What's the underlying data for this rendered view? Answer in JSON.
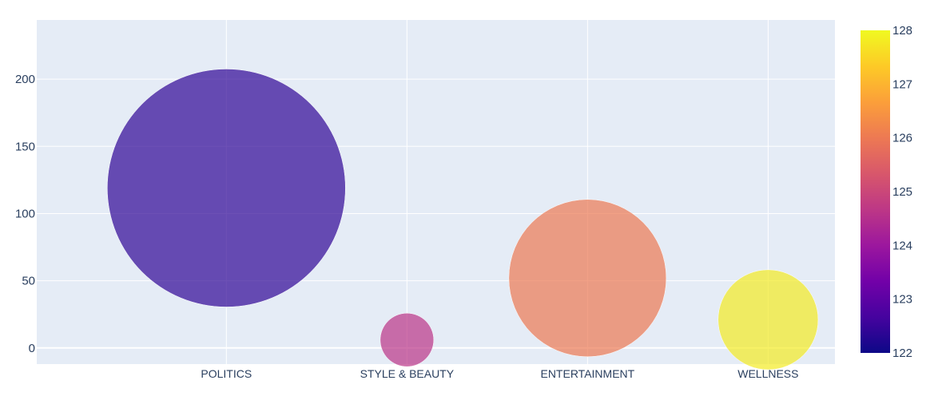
{
  "chart_data": {
    "type": "scatter",
    "subtype": "bubble",
    "categories": [
      "POLITICS",
      "STYLE & BEAUTY",
      "ENTERTAINMENT",
      "WELLNESS"
    ],
    "points": [
      {
        "category": "POLITICS",
        "y": 119,
        "size_value": 119,
        "color_value": 122.4
      },
      {
        "category": "STYLE & BEAUTY",
        "y": 6,
        "size_value": 6,
        "color_value": 124.6
      },
      {
        "category": "ENTERTAINMENT",
        "y": 52,
        "size_value": 52,
        "color_value": 126.0
      },
      {
        "category": "WELLNESS",
        "y": 21,
        "size_value": 21,
        "color_value": 127.8
      }
    ],
    "ylim": [
      -12,
      244
    ],
    "yticks": [
      0,
      50,
      100,
      150,
      200
    ],
    "colorbar": {
      "min": 122,
      "max": 128,
      "ticks": [
        122,
        123,
        124,
        125,
        126,
        127,
        128
      ],
      "colorscale": [
        "#0d0887",
        "#46039f",
        "#7201a8",
        "#9c179e",
        "#bd3786",
        "#d8576b",
        "#ed7953",
        "#fb9f3a",
        "#fdca26",
        "#f0f921"
      ]
    },
    "title": "",
    "xlabel": "",
    "ylabel": "",
    "grid": true,
    "plot_background": "#e5ecf6",
    "bubble_opacity": 0.7
  }
}
